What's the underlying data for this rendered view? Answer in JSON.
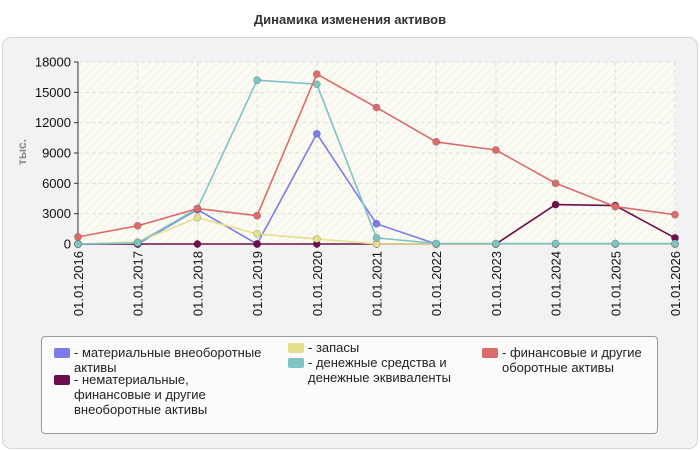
{
  "chart_data": {
    "type": "line",
    "title": "Динамика изменения активов",
    "ylabel": "тыс.",
    "xlabel": "",
    "categories": [
      "01.01.2016",
      "01.01.2017",
      "01.01.2018",
      "01.01.2019",
      "01.01.2020",
      "01.01.2021",
      "01.01.2022",
      "01.01.2023",
      "01.01.2024",
      "01.01.2025",
      "01.01.2026"
    ],
    "ylim": [
      0,
      18000
    ],
    "yticks": [
      "0",
      "3000",
      "6000",
      "9000",
      "12000",
      "15000",
      "18000"
    ],
    "grid": true,
    "legend_position": "bottom",
    "series": [
      {
        "name": "- материальные внеоборотные активы",
        "color": "#7b7bea",
        "values": [
          0,
          0,
          3400,
          0,
          10900,
          2000,
          0,
          0,
          0,
          0,
          0
        ]
      },
      {
        "name": "- нематериальные, финансовые и другие внеоборотные активы",
        "color": "#6d0f4c",
        "values": [
          0,
          0,
          0,
          0,
          0,
          0,
          0,
          0,
          3900,
          3800,
          600
        ]
      },
      {
        "name": "- запасы",
        "color": "#e4e08e",
        "values": [
          0,
          200,
          2600,
          1000,
          500,
          0,
          0,
          0,
          0,
          0,
          0
        ]
      },
      {
        "name": "- денежные средства и денежные эквиваленты",
        "color": "#7fc4c4",
        "values": [
          0,
          100,
          3500,
          16200,
          15800,
          600,
          50,
          50,
          50,
          50,
          50
        ]
      },
      {
        "name": "- финансовые и другие оборотные активы",
        "color": "#dd6b6b",
        "values": [
          700,
          1800,
          3500,
          2800,
          16800,
          13500,
          10100,
          9300,
          6000,
          3700,
          2900
        ]
      }
    ]
  }
}
